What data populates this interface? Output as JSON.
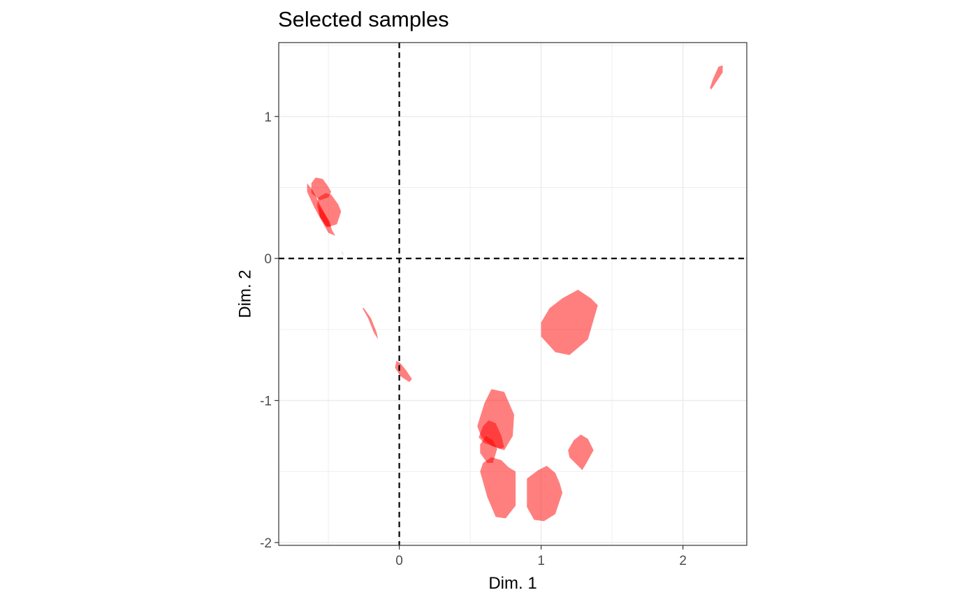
{
  "chart_data": {
    "type": "scatter",
    "title": "Selected samples",
    "xlabel": "Dim. 1",
    "ylabel": "Dim. 2",
    "xlim": [
      -0.85,
      2.45
    ],
    "ylim": [
      -2.02,
      1.52
    ],
    "x_ticks": [
      0,
      1,
      2
    ],
    "x_tick_labels": [
      "0",
      "1",
      "2"
    ],
    "y_ticks": [
      1,
      0,
      -1,
      -2
    ],
    "y_tick_labels": [
      "1",
      "0",
      "-1",
      "-2"
    ],
    "grid": true,
    "reference_lines": {
      "x": 0,
      "y": 0,
      "style": "dashed"
    },
    "fill_color": "#ff0000",
    "fill_opacity": 0.5,
    "regions": [
      [
        [
          2.19,
          1.2
        ],
        [
          2.21,
          1.26
        ],
        [
          2.25,
          1.35
        ],
        [
          2.28,
          1.36
        ],
        [
          2.28,
          1.31
        ],
        [
          2.24,
          1.25
        ],
        [
          2.2,
          1.19
        ]
      ],
      [
        [
          -0.62,
          0.53
        ],
        [
          -0.59,
          0.57
        ],
        [
          -0.54,
          0.56
        ],
        [
          -0.51,
          0.52
        ],
        [
          -0.48,
          0.47
        ],
        [
          -0.5,
          0.43
        ],
        [
          -0.56,
          0.41
        ],
        [
          -0.62,
          0.46
        ]
      ],
      [
        [
          -0.57,
          0.43
        ],
        [
          -0.52,
          0.46
        ],
        [
          -0.48,
          0.45
        ],
        [
          -0.43,
          0.38
        ],
        [
          -0.41,
          0.33
        ],
        [
          -0.44,
          0.24
        ],
        [
          -0.51,
          0.22
        ],
        [
          -0.56,
          0.29
        ],
        [
          -0.58,
          0.37
        ]
      ],
      [
        [
          -0.65,
          0.53
        ],
        [
          -0.61,
          0.48
        ],
        [
          -0.56,
          0.38
        ],
        [
          -0.51,
          0.29
        ],
        [
          -0.47,
          0.19
        ],
        [
          -0.45,
          0.16
        ],
        [
          -0.5,
          0.18
        ],
        [
          -0.55,
          0.27
        ],
        [
          -0.6,
          0.36
        ],
        [
          -0.65,
          0.47
        ]
      ],
      [
        [
          -0.57,
          0.38
        ],
        [
          -0.53,
          0.32
        ],
        [
          -0.49,
          0.26
        ],
        [
          -0.48,
          0.22
        ],
        [
          -0.52,
          0.23
        ],
        [
          -0.56,
          0.3
        ]
      ],
      [
        [
          -0.41,
          0.05
        ],
        [
          -0.39,
          0.02
        ],
        [
          -0.4,
          0.04
        ]
      ],
      [
        [
          -0.26,
          -0.35
        ],
        [
          -0.22,
          -0.42
        ],
        [
          -0.18,
          -0.52
        ],
        [
          -0.15,
          -0.57
        ],
        [
          -0.16,
          -0.52
        ],
        [
          -0.2,
          -0.42
        ],
        [
          -0.25,
          -0.35
        ]
      ],
      [
        [
          -0.02,
          -0.72
        ],
        [
          0.01,
          -0.74
        ],
        [
          0.05,
          -0.79
        ],
        [
          0.09,
          -0.85
        ],
        [
          0.07,
          -0.87
        ],
        [
          0.01,
          -0.83
        ],
        [
          -0.03,
          -0.77
        ]
      ],
      [
        [
          1.0,
          -0.45
        ],
        [
          1.06,
          -0.35
        ],
        [
          1.15,
          -0.28
        ],
        [
          1.26,
          -0.22
        ],
        [
          1.35,
          -0.28
        ],
        [
          1.4,
          -0.33
        ],
        [
          1.33,
          -0.57
        ],
        [
          1.2,
          -0.68
        ],
        [
          1.1,
          -0.66
        ],
        [
          1.0,
          -0.55
        ]
      ],
      [
        [
          0.55,
          -1.18
        ],
        [
          0.6,
          -1.02
        ],
        [
          0.65,
          -0.92
        ],
        [
          0.74,
          -0.94
        ],
        [
          0.81,
          -1.1
        ],
        [
          0.8,
          -1.25
        ],
        [
          0.74,
          -1.35
        ],
        [
          0.65,
          -1.32
        ],
        [
          0.58,
          -1.26
        ]
      ],
      [
        [
          0.56,
          -1.26
        ],
        [
          0.59,
          -1.18
        ],
        [
          0.63,
          -1.14
        ],
        [
          0.68,
          -1.16
        ],
        [
          0.72,
          -1.25
        ],
        [
          0.74,
          -1.33
        ],
        [
          0.71,
          -1.34
        ],
        [
          0.66,
          -1.32
        ],
        [
          0.6,
          -1.3
        ]
      ],
      [
        [
          0.57,
          -1.31
        ],
        [
          0.61,
          -1.25
        ],
        [
          0.66,
          -1.28
        ],
        [
          0.69,
          -1.34
        ],
        [
          0.66,
          -1.44
        ],
        [
          0.62,
          -1.44
        ],
        [
          0.57,
          -1.37
        ]
      ],
      [
        [
          0.57,
          -1.5
        ],
        [
          0.59,
          -1.44
        ],
        [
          0.65,
          -1.4
        ],
        [
          0.72,
          -1.42
        ],
        [
          0.77,
          -1.47
        ],
        [
          0.82,
          -1.5
        ],
        [
          0.82,
          -1.74
        ],
        [
          0.75,
          -1.83
        ],
        [
          0.68,
          -1.82
        ],
        [
          0.62,
          -1.68
        ]
      ],
      [
        [
          0.9,
          -1.55
        ],
        [
          0.98,
          -1.49
        ],
        [
          1.04,
          -1.46
        ],
        [
          1.1,
          -1.51
        ],
        [
          1.13,
          -1.58
        ],
        [
          1.15,
          -1.65
        ],
        [
          1.1,
          -1.8
        ],
        [
          1.02,
          -1.85
        ],
        [
          0.95,
          -1.84
        ],
        [
          0.9,
          -1.75
        ]
      ],
      [
        [
          1.19,
          -1.35
        ],
        [
          1.23,
          -1.28
        ],
        [
          1.28,
          -1.24
        ],
        [
          1.33,
          -1.27
        ],
        [
          1.37,
          -1.35
        ],
        [
          1.32,
          -1.44
        ],
        [
          1.29,
          -1.49
        ],
        [
          1.2,
          -1.4
        ]
      ]
    ]
  }
}
